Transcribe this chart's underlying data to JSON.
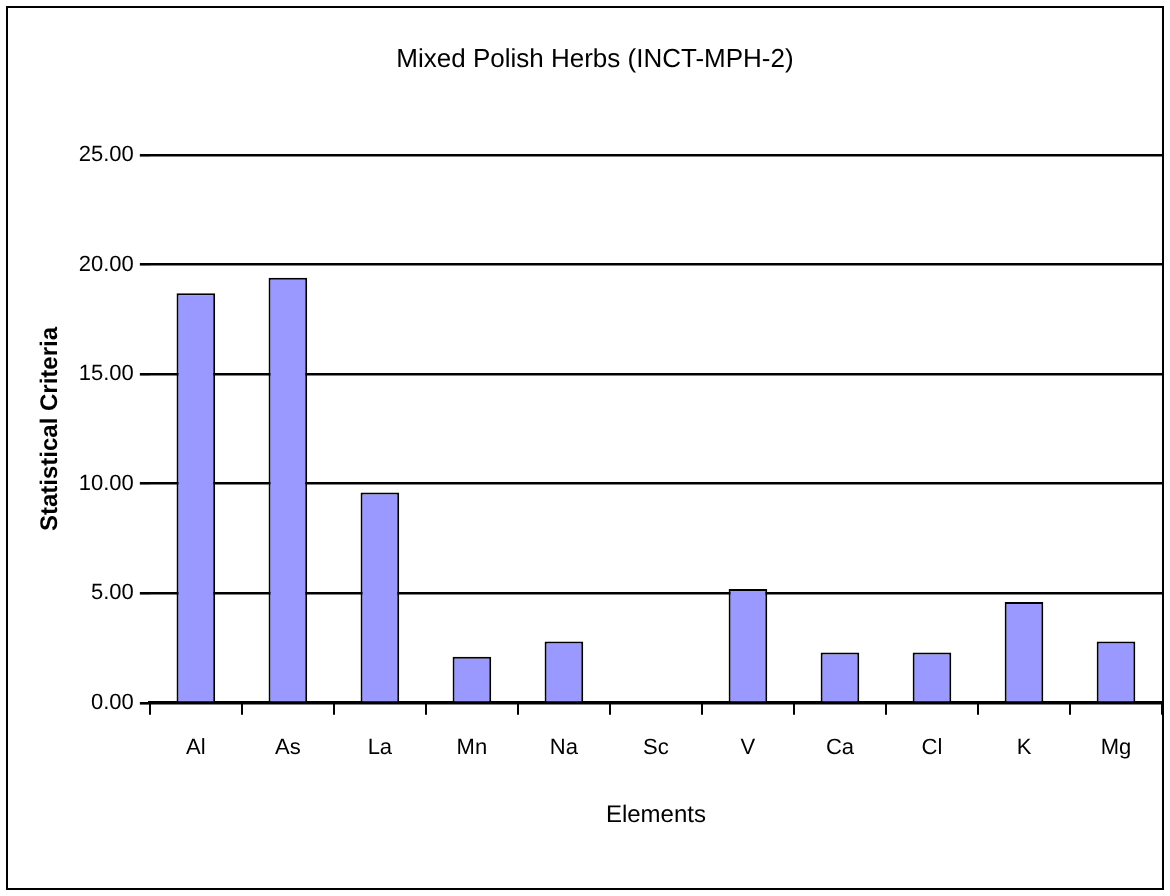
{
  "chart_data": {
    "type": "bar",
    "title": "Mixed Polish Herbs (INCT-MPH-2)",
    "xlabel": "Elements",
    "ylabel": "Statistical Criteria",
    "categories": [
      "Al",
      "As",
      "La",
      "Mn",
      "Na",
      "Sc",
      "V",
      "Ca",
      "Cl",
      "K",
      "Mg"
    ],
    "values": [
      18.7,
      19.4,
      9.6,
      2.1,
      2.8,
      0,
      5.2,
      2.3,
      2.3,
      4.6,
      2.8
    ],
    "color": "#9999ff",
    "ylim": [
      0,
      25
    ],
    "yticks": [
      {
        "value": 0,
        "label": "0.00"
      },
      {
        "value": 5,
        "label": "5.00"
      },
      {
        "value": 10,
        "label": "10.00"
      },
      {
        "value": 15,
        "label": "15.00"
      },
      {
        "value": 20,
        "label": "20.00"
      },
      {
        "value": 25,
        "label": "25.00"
      }
    ],
    "grid": "y",
    "legend": false
  }
}
